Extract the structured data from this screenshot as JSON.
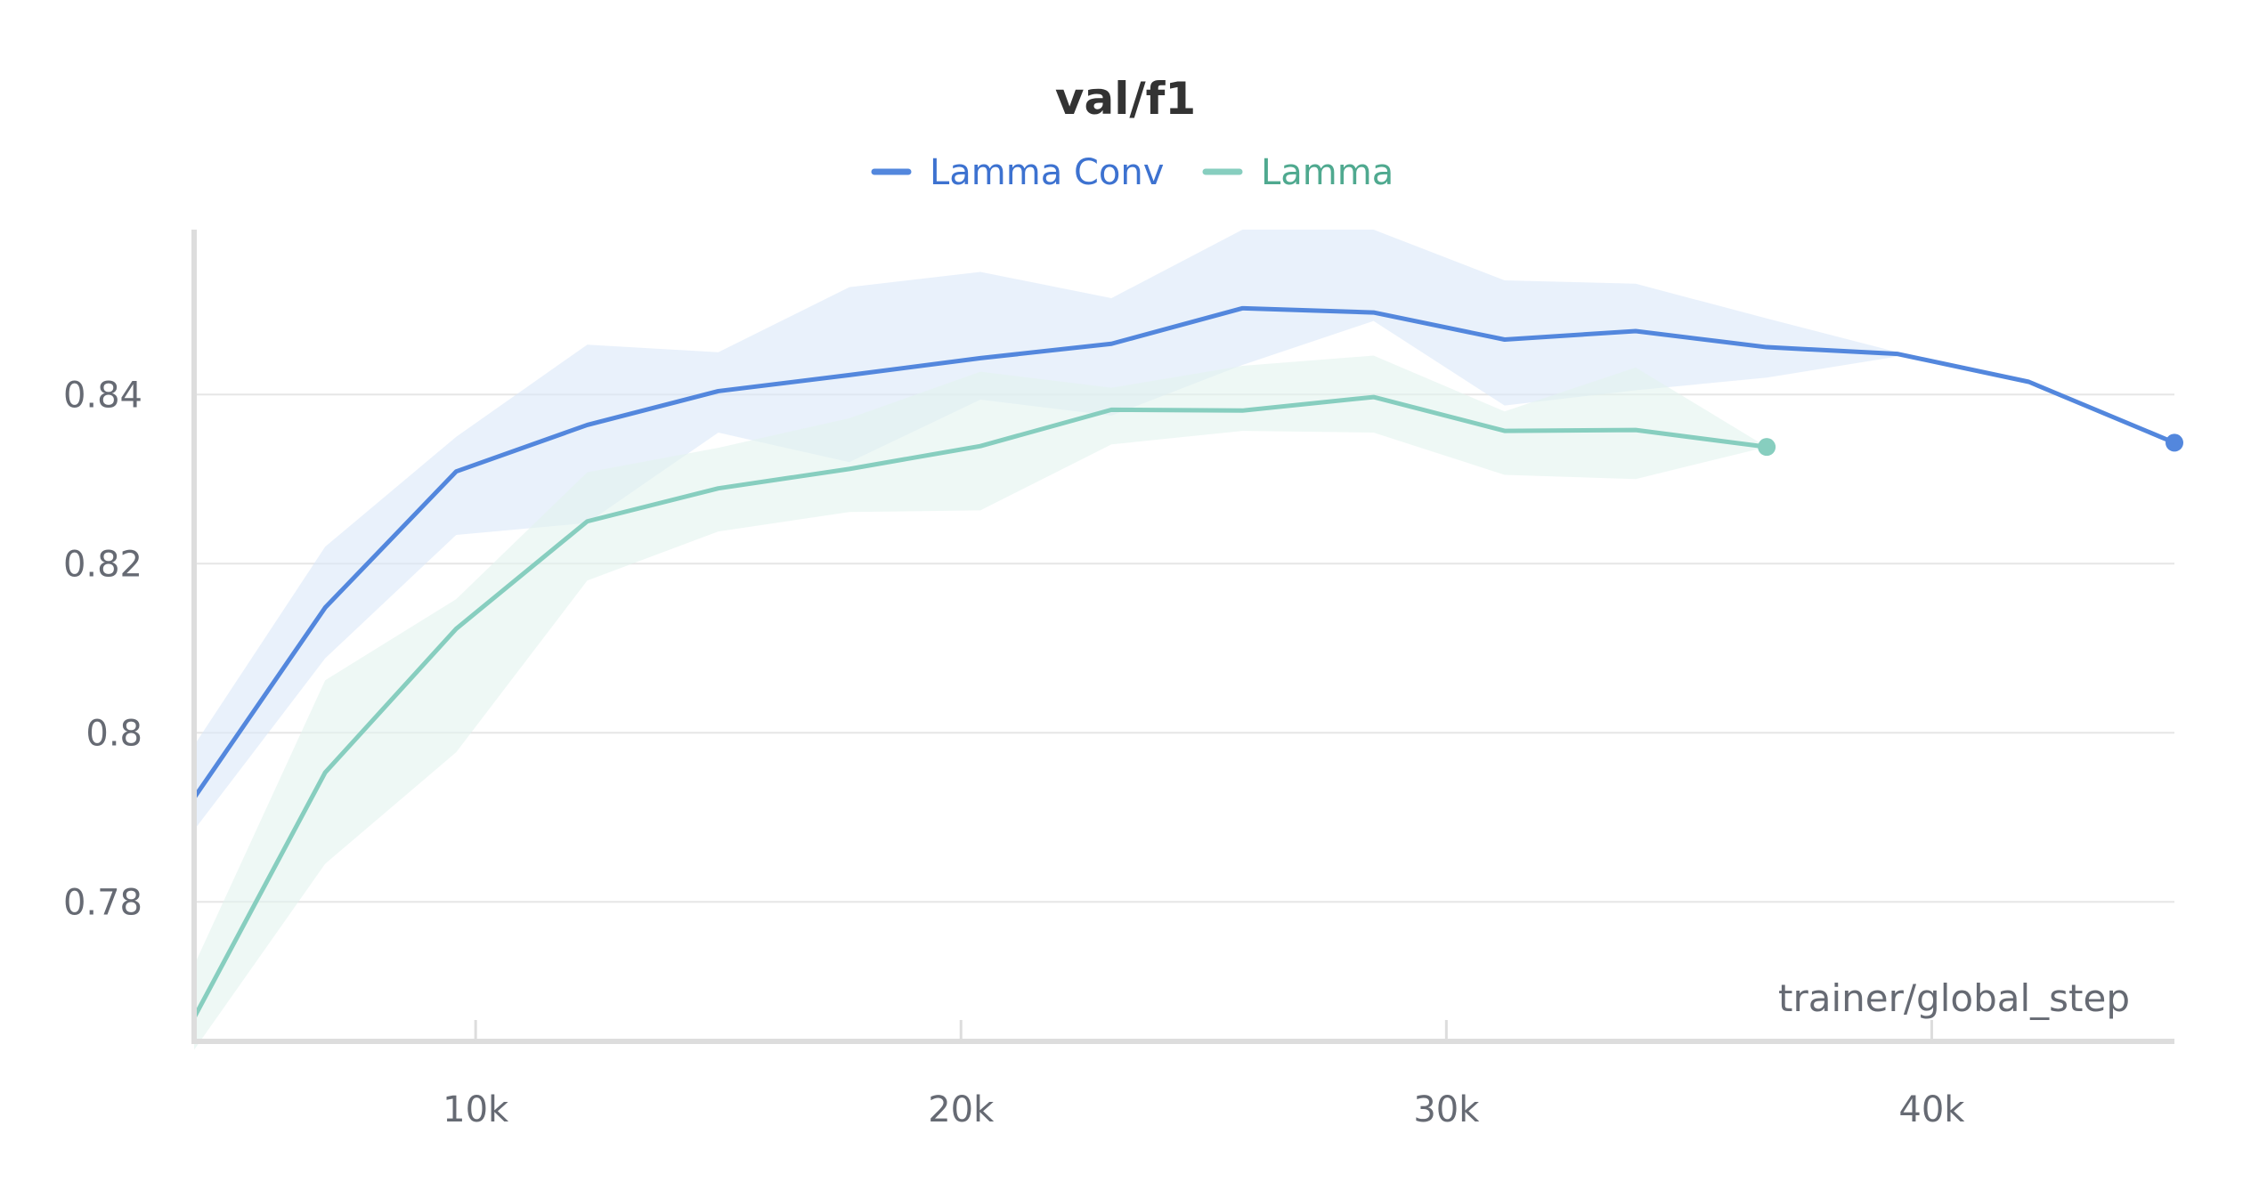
{
  "chart_data": {
    "type": "line",
    "title": "val/f1",
    "xlabel": "trainer/global_step",
    "ylabel": "",
    "xlim": [
      4200,
      45000
    ],
    "ylim": [
      0.7635,
      0.8595
    ],
    "xticks": [
      10000,
      20000,
      30000,
      40000
    ],
    "xtick_labels": [
      "10k",
      "20k",
      "30k",
      "40k"
    ],
    "yticks": [
      0.78,
      0.8,
      0.82,
      0.84
    ],
    "ytick_labels": [
      "0.78",
      "0.8",
      "0.82",
      "0.84"
    ],
    "grid": "horizontal",
    "legend": "top-center",
    "series": [
      {
        "name": "Lamma Conv",
        "color": "#5387dd",
        "band_color": "#dbe7f9",
        "x": [
          4200,
          6900,
          9600,
          12300,
          15000,
          17700,
          20400,
          23100,
          25800,
          28500,
          31200,
          33900,
          36600,
          39300,
          42000,
          45000
        ],
        "y": [
          0.7923,
          0.8148,
          0.8309,
          0.8364,
          0.8404,
          0.8423,
          0.8443,
          0.846,
          0.8502,
          0.8497,
          0.8465,
          0.8475,
          0.8456,
          0.8448,
          0.8415,
          0.8343
        ],
        "upper": [
          0.7985,
          0.822,
          0.835,
          0.8459,
          0.845,
          0.8527,
          0.8545,
          0.8514,
          0.8595,
          0.8595,
          0.8535,
          0.8531,
          0.849,
          0.845,
          0.8415,
          0.8343
        ],
        "lower": [
          0.7885,
          0.8088,
          0.8234,
          0.8248,
          0.8355,
          0.832,
          0.8394,
          0.8375,
          0.8435,
          0.8487,
          0.8387,
          0.8405,
          0.842,
          0.8445,
          0.8415,
          0.8343
        ]
      },
      {
        "name": "Lamma",
        "color": "#87cebf",
        "band_color": "#e3f3ee",
        "x": [
          4200,
          6900,
          9600,
          12300,
          15000,
          17700,
          20400,
          23100,
          25800,
          28500,
          31200,
          33900,
          36600
        ],
        "y": [
          0.7663,
          0.7953,
          0.8123,
          0.825,
          0.8289,
          0.8312,
          0.8339,
          0.8382,
          0.8381,
          0.8397,
          0.8357,
          0.8358,
          0.8338
        ],
        "upper": [
          0.7725,
          0.8062,
          0.8158,
          0.8308,
          0.8337,
          0.8372,
          0.8427,
          0.8408,
          0.8434,
          0.8446,
          0.838,
          0.8432,
          0.8338
        ],
        "lower": [
          0.7625,
          0.7845,
          0.7977,
          0.818,
          0.8238,
          0.8261,
          0.8263,
          0.8341,
          0.8357,
          0.8355,
          0.8305,
          0.83,
          0.8338
        ]
      }
    ]
  }
}
